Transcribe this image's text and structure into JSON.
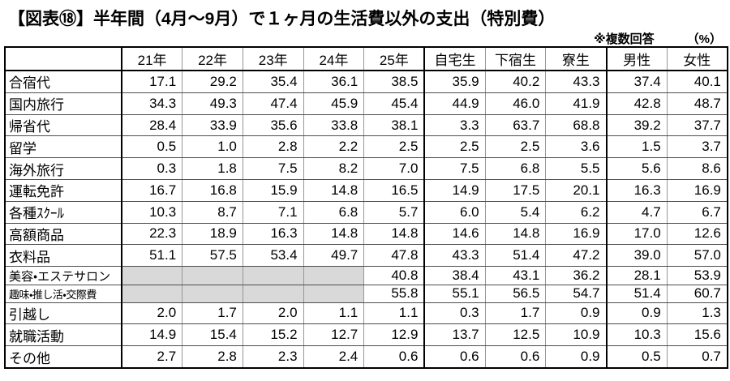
{
  "title": "【図表⑱】半年間（4月～9月）で１ヶ月の生活費以外の支出（特別費）",
  "note": "※複数回答",
  "unit": "（%）",
  "colors": {
    "border_major": "#000000",
    "border_minor_horizontal": "#4d4d4d",
    "border_minor_vertical": "#969696",
    "empty_cell_fill": "#d9d9d9",
    "text": "#000000",
    "background": "#ffffff"
  },
  "chart_data": {
    "type": "table",
    "title": "半年間（4月～9月）で１ヶ月の生活費以外の支出（特別費）",
    "figure_number": "図表⑱",
    "note": "※複数回答",
    "unit": "%",
    "columns": [
      "",
      "21年",
      "22年",
      "23年",
      "24年",
      "25年",
      "自宅生",
      "下宿生",
      "寮生",
      "男性",
      "女性"
    ],
    "thick_border_after_column_indexes": [
      0,
      5,
      8
    ],
    "rows": [
      {
        "label": "合宿代",
        "values": [
          17.1,
          29.2,
          35.4,
          36.1,
          38.5,
          35.9,
          40.2,
          43.3,
          37.4,
          40.1
        ]
      },
      {
        "label": "国内旅行",
        "values": [
          34.3,
          49.3,
          47.4,
          45.9,
          45.4,
          44.9,
          46.0,
          41.9,
          42.8,
          48.7
        ]
      },
      {
        "label": "帰省代",
        "values": [
          28.4,
          33.9,
          35.6,
          33.8,
          38.1,
          3.3,
          63.7,
          68.8,
          39.2,
          37.7
        ]
      },
      {
        "label": "留学",
        "values": [
          0.5,
          1.0,
          2.8,
          2.2,
          2.5,
          2.5,
          2.5,
          3.6,
          1.5,
          3.7
        ]
      },
      {
        "label": "海外旅行",
        "values": [
          0.3,
          1.8,
          7.5,
          8.2,
          7.0,
          7.5,
          6.8,
          5.5,
          5.6,
          8.6
        ]
      },
      {
        "label": "運転免許",
        "values": [
          16.7,
          16.8,
          15.9,
          14.8,
          16.5,
          14.9,
          17.5,
          20.1,
          16.3,
          16.9
        ]
      },
      {
        "label": "各種ｽｸｰﾙ",
        "values": [
          10.3,
          8.7,
          7.1,
          6.8,
          5.7,
          6.0,
          5.4,
          6.2,
          4.7,
          6.7
        ]
      },
      {
        "label": "高額商品",
        "values": [
          22.3,
          18.9,
          16.3,
          14.8,
          14.8,
          14.6,
          14.8,
          16.9,
          17.0,
          12.6
        ]
      },
      {
        "label": "衣料品",
        "values": [
          51.1,
          57.5,
          53.4,
          49.7,
          47.8,
          43.3,
          51.4,
          47.2,
          39.0,
          57.0
        ]
      },
      {
        "label": "美容・エステサロン",
        "label_size": "small1",
        "values": [
          null,
          null,
          null,
          null,
          40.8,
          38.4,
          43.1,
          36.2,
          28.1,
          53.9
        ]
      },
      {
        "label": "趣味・推し活・交際費",
        "label_size": "small2",
        "values": [
          null,
          null,
          null,
          null,
          55.8,
          55.1,
          56.5,
          54.7,
          51.4,
          60.7
        ]
      },
      {
        "label": "引越し",
        "values": [
          2.0,
          1.7,
          2.0,
          1.1,
          1.1,
          0.3,
          1.7,
          0.9,
          0.9,
          1.3
        ]
      },
      {
        "label": "就職活動",
        "values": [
          14.9,
          15.4,
          15.2,
          12.7,
          12.9,
          13.7,
          12.5,
          10.9,
          10.3,
          15.6
        ]
      },
      {
        "label": "その他",
        "values": [
          2.7,
          2.8,
          2.3,
          2.4,
          0.6,
          0.6,
          0.6,
          0.9,
          0.5,
          0.7
        ]
      }
    ]
  }
}
